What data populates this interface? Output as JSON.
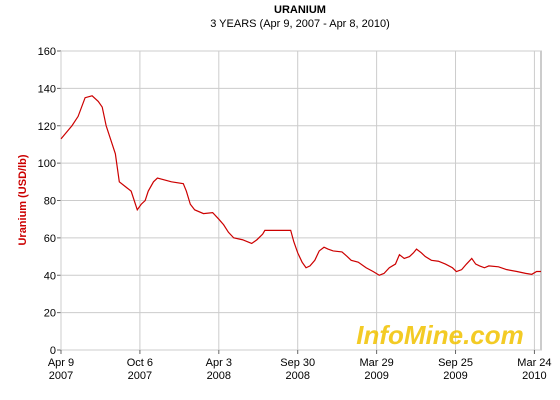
{
  "chart_data": {
    "type": "line",
    "title": "URANIUM",
    "subtitle": "3 YEARS (Apr 9, 2007 - Apr 8, 2010)",
    "y_label": "Uranium (USD/lb)",
    "watermark": "InfoMine.com",
    "x": [
      "2007-04-09",
      "2007-05-04",
      "2007-05-18",
      "2007-06-03",
      "2007-06-19",
      "2007-07-03",
      "2007-07-12",
      "2007-07-21",
      "2007-08-04",
      "2007-08-11",
      "2007-08-20",
      "2007-09-16",
      "2007-09-30",
      "2007-10-09",
      "2007-10-18",
      "2007-10-25",
      "2007-11-06",
      "2007-11-15",
      "2007-12-17",
      "2008-01-13",
      "2008-01-20",
      "2008-01-29",
      "2008-02-08",
      "2008-02-28",
      "2008-03-20",
      "2008-04-03",
      "2008-04-14",
      "2008-04-25",
      "2008-05-07",
      "2008-05-27",
      "2008-06-17",
      "2008-06-29",
      "2008-07-12",
      "2008-07-17",
      "2008-09-14",
      "2008-09-21",
      "2008-09-30",
      "2008-10-10",
      "2008-10-19",
      "2008-10-28",
      "2008-11-08",
      "2008-11-18",
      "2008-11-29",
      "2008-12-08",
      "2008-12-20",
      "2009-01-09",
      "2009-01-21",
      "2009-01-30",
      "2009-02-15",
      "2009-03-05",
      "2009-03-21",
      "2009-04-04",
      "2009-04-15",
      "2009-04-27",
      "2009-05-11",
      "2009-05-20",
      "2009-05-31",
      "2009-06-12",
      "2009-06-21",
      "2009-06-28",
      "2009-07-09",
      "2009-07-18",
      "2009-08-01",
      "2009-08-17",
      "2009-09-02",
      "2009-09-18",
      "2009-09-27",
      "2009-10-09",
      "2009-10-20",
      "2009-11-01",
      "2009-11-10",
      "2009-11-19",
      "2009-11-30",
      "2009-12-10",
      "2010-01-01",
      "2010-01-20",
      "2010-02-12",
      "2010-03-04",
      "2010-03-18",
      "2010-03-29",
      "2010-04-08"
    ],
    "series": [
      {
        "name": "Uranium",
        "color": "#cc0000",
        "values": [
          113,
          120,
          125,
          135,
          136,
          133,
          130,
          120,
          110,
          105,
          90,
          85,
          75,
          78,
          80,
          85,
          90,
          92,
          90,
          89,
          85,
          78,
          75,
          73,
          73.5,
          70,
          67,
          63,
          60,
          59,
          57,
          59,
          62,
          64,
          64,
          58,
          52,
          47,
          44,
          45,
          48,
          53,
          55,
          54,
          53,
          52.5,
          50,
          48,
          47,
          44,
          42,
          40,
          41,
          44,
          46,
          51,
          49,
          50,
          52,
          54,
          52,
          50,
          48,
          47.5,
          46,
          44,
          42,
          43,
          46,
          49,
          46,
          45,
          44,
          45,
          44.5,
          43,
          42,
          41,
          40.5,
          42,
          42
        ]
      }
    ],
    "xlim": [
      "2007-04-09",
      "2010-04-08"
    ],
    "xticks": [
      {
        "value": "2007-04-09",
        "label": [
          "Apr 9",
          "2007"
        ]
      },
      {
        "value": "2007-10-06",
        "label": [
          "Oct 6",
          "2007"
        ]
      },
      {
        "value": "2008-04-03",
        "label": [
          "Apr 3",
          "2008"
        ]
      },
      {
        "value": "2008-09-30",
        "label": [
          "Sep 30",
          "2008"
        ]
      },
      {
        "value": "2009-03-29",
        "label": [
          "Mar 29",
          "2009"
        ]
      },
      {
        "value": "2009-09-25",
        "label": [
          "Sep 25",
          "2009"
        ]
      },
      {
        "value": "2010-03-24",
        "label": [
          "Mar 24",
          "2010"
        ]
      }
    ],
    "ylim": [
      0,
      160
    ],
    "yticks": [
      0,
      20,
      40,
      60,
      80,
      100,
      120,
      140,
      160
    ],
    "grid": true
  }
}
